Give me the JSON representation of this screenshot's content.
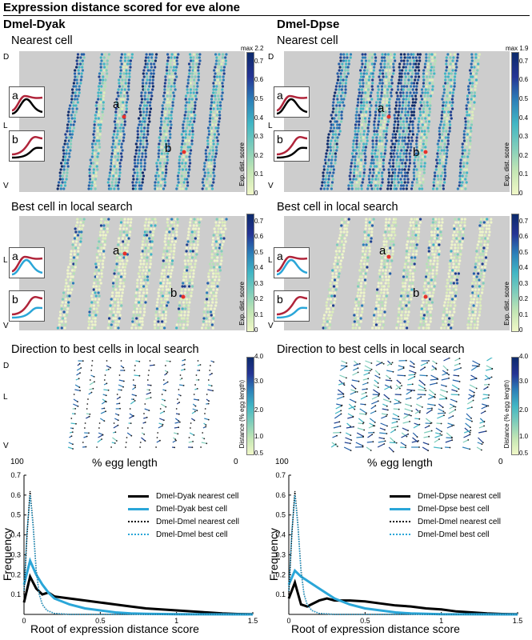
{
  "figure_title": "Expression distance scored for eve alone",
  "panels": {
    "left_column_title": "Dmel-Dyak",
    "right_column_title": "Dmel-Dpse",
    "row1_title": "Nearest cell",
    "row2_title": "Best cell in local search",
    "row3_title": "Direction to best cells in local search",
    "axis_d": "D",
    "axis_l": "L",
    "axis_v": "V",
    "egg_axis_label": "% egg length",
    "egg_left": "100",
    "egg_right": "0",
    "point_a": "a",
    "point_b": "b",
    "score_colorbar_label": "Exp. dist. score",
    "score_ticks": [
      "0.7",
      "0.6",
      "0.5",
      "0.4",
      "0.3",
      "0.2",
      "0.1",
      "0"
    ],
    "left_max": "max 2.2",
    "right_max": "max 1.9",
    "dist_colorbar_label": "Distance (% egg length)",
    "dist_ticks": [
      "4.0",
      "3.0",
      "2.0",
      "1.0",
      "0.5"
    ]
  },
  "colors": {
    "embryo_background": "#cdcdcd",
    "low_score": "#edf5c8",
    "mid_score": "#41b6c4",
    "high_score": "#1d3f8f",
    "marked_cell": "#e8302a",
    "dyak_dpse_curve": "#b0243a",
    "dmel_best_curve": "#2aa6d8"
  },
  "chart_data": [
    {
      "type": "line",
      "title": "",
      "xlabel": "Root of expression distance score",
      "ylabel": "Frequency",
      "xlim": [
        0,
        1.5
      ],
      "ylim": [
        0,
        0.7
      ],
      "xticks": [
        "0",
        "0.5",
        "1",
        "1.5"
      ],
      "yticks": [
        "0.1",
        "0.2",
        "0.3",
        "0.4",
        "0.5",
        "0.6",
        "0.7"
      ],
      "legend": "top-right",
      "series": [
        {
          "name": "Dmel-Dyak nearest cell",
          "color": "#000000",
          "style": "solid-thick",
          "x": [
            0,
            0.04,
            0.08,
            0.12,
            0.16,
            0.2,
            0.3,
            0.4,
            0.5,
            0.6,
            0.7,
            0.8,
            0.9,
            1.0,
            1.1,
            1.2,
            1.3,
            1.4,
            1.5
          ],
          "y": [
            0.06,
            0.19,
            0.13,
            0.1,
            0.11,
            0.09,
            0.08,
            0.07,
            0.06,
            0.05,
            0.04,
            0.03,
            0.025,
            0.02,
            0.015,
            0.01,
            0.005,
            0.002,
            0.001
          ]
        },
        {
          "name": "Dmel-Dyak best cell",
          "color": "#2aa6d8",
          "style": "solid-thick",
          "x": [
            0,
            0.04,
            0.08,
            0.12,
            0.16,
            0.2,
            0.3,
            0.4,
            0.5,
            0.6,
            0.7,
            0.8,
            0.9,
            1.0,
            1.5
          ],
          "y": [
            0.15,
            0.27,
            0.2,
            0.15,
            0.11,
            0.08,
            0.05,
            0.03,
            0.02,
            0.01,
            0.005,
            0.003,
            0.002,
            0.001,
            0.0
          ]
        },
        {
          "name": "Dmel-Dmel nearest cell",
          "color": "#000000",
          "style": "dotted",
          "x": [
            0,
            0.02,
            0.04,
            0.06,
            0.08,
            0.1,
            0.12,
            0.15,
            0.2,
            0.3,
            1.5
          ],
          "y": [
            0.1,
            0.4,
            0.62,
            0.45,
            0.22,
            0.1,
            0.05,
            0.02,
            0.005,
            0.0,
            0.0
          ]
        },
        {
          "name": "Dmel-Dmel best cell",
          "color": "#2aa6d8",
          "style": "dotted",
          "x": [
            0,
            0.02,
            0.04,
            0.06,
            0.08,
            0.1,
            0.12,
            0.15,
            0.2,
            0.3,
            1.5
          ],
          "y": [
            0.12,
            0.42,
            0.6,
            0.44,
            0.21,
            0.1,
            0.05,
            0.02,
            0.005,
            0.0,
            0.0
          ]
        }
      ]
    },
    {
      "type": "line",
      "title": "",
      "xlabel": "Root of expression distance score",
      "ylabel": "Frequency",
      "xlim": [
        0,
        1.5
      ],
      "ylim": [
        0,
        0.7
      ],
      "xticks": [
        "0",
        "0.5",
        "1",
        "1.5"
      ],
      "yticks": [
        "0.1",
        "0.2",
        "0.3",
        "0.4",
        "0.5",
        "0.6",
        "0.7"
      ],
      "legend": "top-right",
      "series": [
        {
          "name": "Dmel-Dpse nearest cell",
          "color": "#000000",
          "style": "solid-thick",
          "x": [
            0,
            0.04,
            0.08,
            0.12,
            0.2,
            0.25,
            0.3,
            0.4,
            0.5,
            0.6,
            0.7,
            0.8,
            0.9,
            1.0,
            1.1,
            1.2,
            1.3,
            1.4,
            1.5
          ],
          "y": [
            0.08,
            0.16,
            0.05,
            0.04,
            0.07,
            0.08,
            0.07,
            0.07,
            0.065,
            0.055,
            0.045,
            0.04,
            0.03,
            0.025,
            0.015,
            0.01,
            0.005,
            0.002,
            0.001
          ]
        },
        {
          "name": "Dmel-Dpse best cell",
          "color": "#2aa6d8",
          "style": "solid-thick",
          "x": [
            0,
            0.04,
            0.08,
            0.12,
            0.16,
            0.2,
            0.3,
            0.4,
            0.5,
            0.6,
            0.7,
            0.8,
            0.9,
            1.0,
            1.5
          ],
          "y": [
            0.15,
            0.22,
            0.19,
            0.17,
            0.15,
            0.13,
            0.08,
            0.05,
            0.03,
            0.02,
            0.01,
            0.005,
            0.003,
            0.001,
            0.0
          ]
        },
        {
          "name": "Dmel-Dmel nearest cell",
          "color": "#000000",
          "style": "dotted",
          "x": [
            0,
            0.02,
            0.04,
            0.06,
            0.08,
            0.1,
            0.12,
            0.15,
            0.2,
            0.3,
            1.5
          ],
          "y": [
            0.1,
            0.4,
            0.62,
            0.45,
            0.22,
            0.1,
            0.05,
            0.02,
            0.005,
            0.0,
            0.0
          ]
        },
        {
          "name": "Dmel-Dmel best cell",
          "color": "#2aa6d8",
          "style": "dotted",
          "x": [
            0,
            0.02,
            0.04,
            0.06,
            0.08,
            0.1,
            0.12,
            0.15,
            0.2,
            0.3,
            1.5
          ],
          "y": [
            0.12,
            0.42,
            0.6,
            0.44,
            0.21,
            0.1,
            0.05,
            0.02,
            0.005,
            0.0,
            0.0
          ]
        }
      ]
    }
  ]
}
